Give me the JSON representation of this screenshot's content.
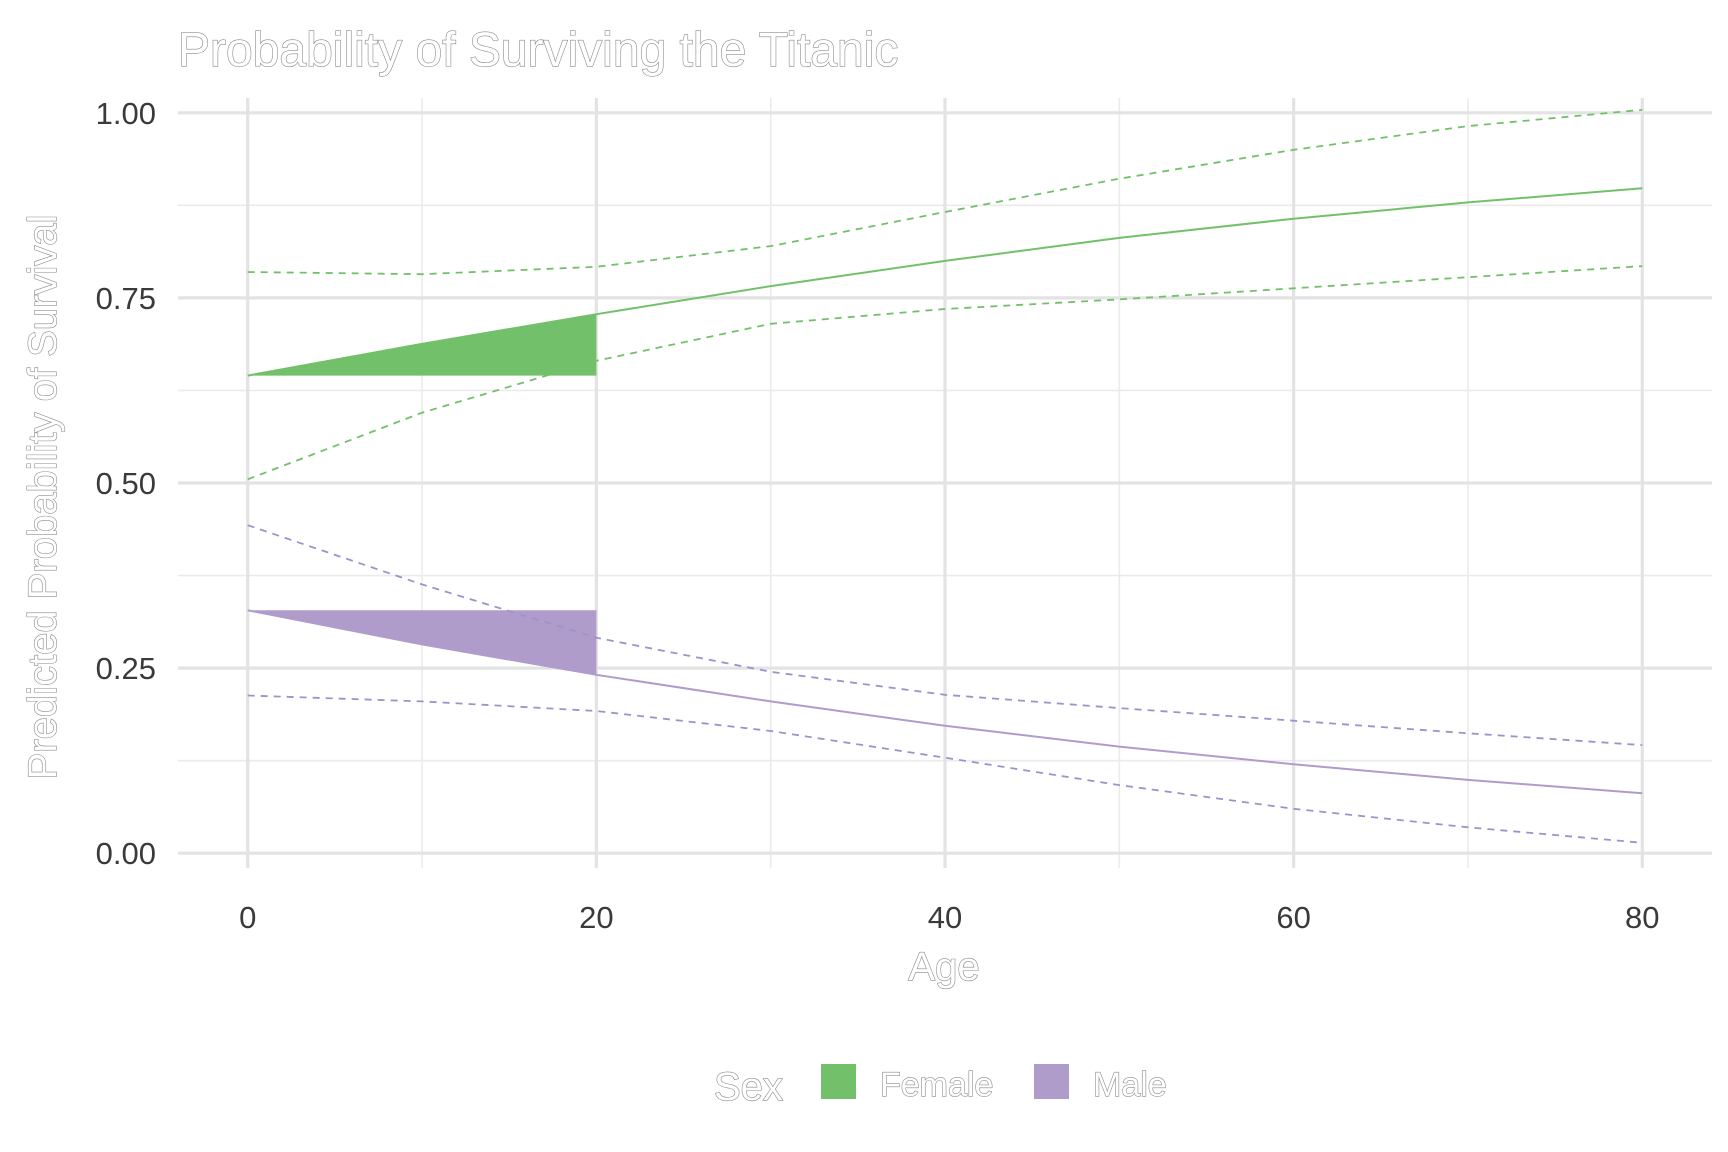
{
  "chart_data": {
    "type": "line",
    "title": "Probability of Surviving the Titanic",
    "xlabel": "Age",
    "ylabel": "Predicted Probability of Survival",
    "xlim": [
      -4,
      84
    ],
    "ylim": [
      -0.02,
      1.02
    ],
    "xticks": [
      0,
      20,
      40,
      60,
      80
    ],
    "xtick_labels": [
      "0",
      "20",
      "40",
      "60",
      "80"
    ],
    "yticks": [
      0,
      0.25,
      0.5,
      0.75,
      1.0
    ],
    "ytick_labels": [
      "0.00",
      "0.25",
      "0.50",
      "0.75",
      "1.00"
    ],
    "grid": true,
    "legend": {
      "title": "Sex",
      "position": "bottom",
      "entries": [
        {
          "name": "Female",
          "color": "#72c16a"
        },
        {
          "name": "Male",
          "color": "#b09ccb"
        }
      ]
    },
    "x": [
      0,
      10,
      20,
      30,
      40,
      50,
      60,
      70,
      80
    ],
    "series": [
      {
        "name": "Female",
        "color": "#72c16a",
        "ci_color": "#72c16a",
        "values": [
          0.645,
          0.688,
          0.728,
          0.766,
          0.8,
          0.831,
          0.857,
          0.879,
          0.898
        ],
        "ci_upper": [
          0.785,
          0.782,
          0.792,
          0.82,
          0.866,
          0.911,
          0.95,
          0.982,
          1.004
        ],
        "ci_lower": [
          0.505,
          0.595,
          0.665,
          0.715,
          0.735,
          0.748,
          0.763,
          0.778,
          0.793
        ],
        "shaded_region": {
          "x_from": 0,
          "x_to": 20,
          "baseline": 0.645
        }
      },
      {
        "name": "Male",
        "color": "#b09ccb",
        "ci_color": "#9a94cc",
        "values": [
          0.328,
          0.282,
          0.241,
          0.205,
          0.172,
          0.144,
          0.12,
          0.099,
          0.081
        ],
        "ci_upper": [
          0.443,
          0.363,
          0.291,
          0.245,
          0.214,
          0.196,
          0.179,
          0.162,
          0.146
        ],
        "ci_lower": [
          0.213,
          0.205,
          0.192,
          0.165,
          0.129,
          0.092,
          0.06,
          0.035,
          0.014
        ],
        "shaded_region": {
          "x_from": 0,
          "x_to": 20,
          "baseline": 0.328
        }
      }
    ]
  }
}
